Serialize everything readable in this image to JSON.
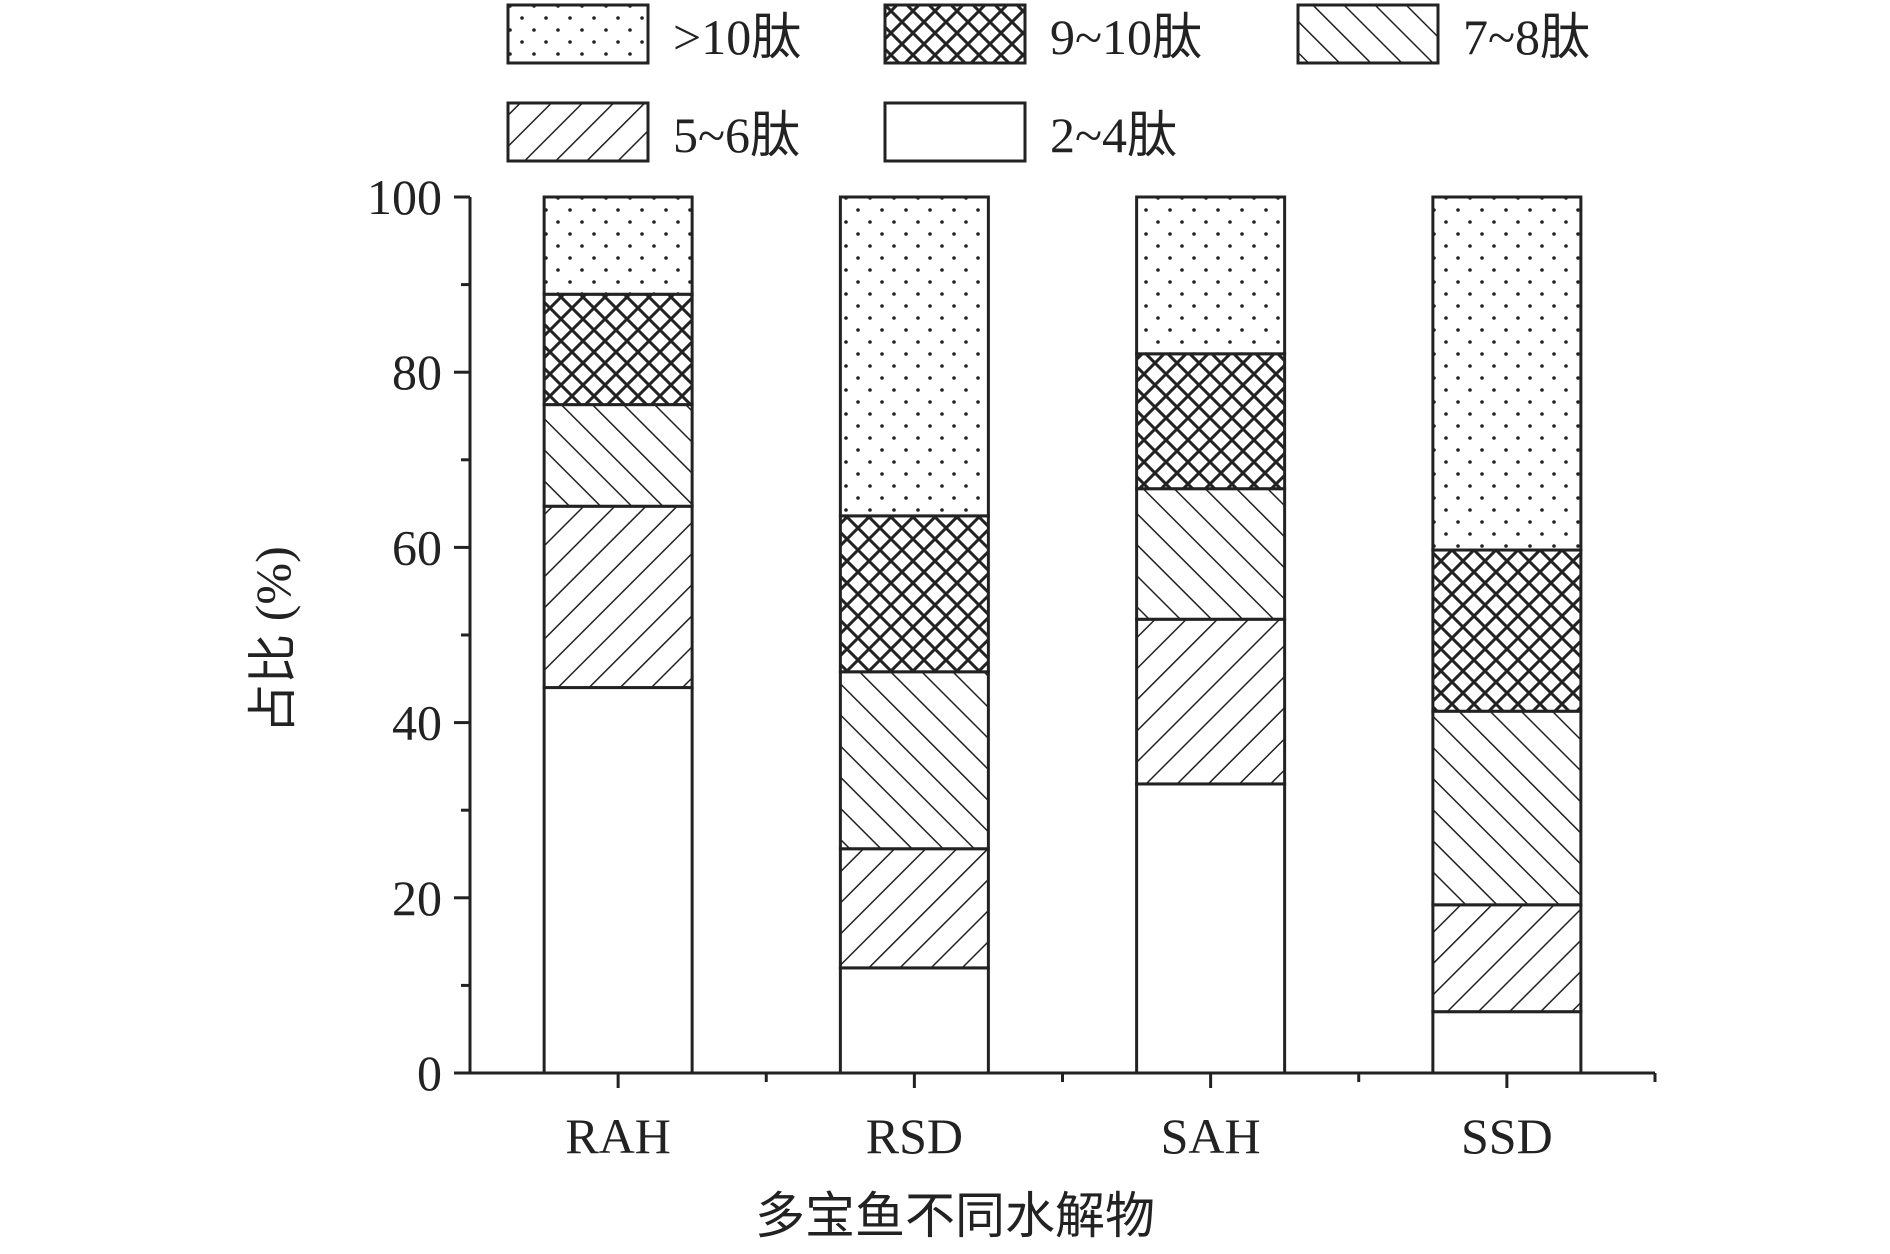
{
  "chart_data": {
    "type": "bar",
    "stacked": true,
    "title": "",
    "xlabel": "多宝鱼不同水解物",
    "ylabel": "占比 (%)",
    "ylim": [
      0,
      100
    ],
    "yticks": [
      "0",
      "20",
      "40",
      "60",
      "80",
      "100"
    ],
    "categories": [
      "RAH",
      "RSD",
      "SAH",
      "SSD"
    ],
    "legend_position": "top",
    "series": [
      {
        "name": "2~4肽",
        "pattern": "blank",
        "values": [
          44.0,
          12.0,
          33.0,
          7.0
        ]
      },
      {
        "name": "5~6肽",
        "pattern": "diagonal-up",
        "values": [
          20.7,
          13.6,
          18.8,
          12.2
        ]
      },
      {
        "name": "7~8肽",
        "pattern": "diagonal-down",
        "values": [
          11.6,
          20.2,
          14.9,
          22.1
        ]
      },
      {
        "name": "9~10肽",
        "pattern": "crosshatch",
        "values": [
          12.6,
          17.8,
          15.4,
          18.4
        ]
      },
      {
        "name": ">10肽",
        "pattern": "dots",
        "values": [
          11.1,
          36.4,
          17.9,
          40.3
        ]
      }
    ],
    "legend_order": [
      ">10肽",
      "9~10肽",
      "7~8肽",
      "5~6肽",
      "2~4肽"
    ],
    "colors": {
      "stroke": "#222222",
      "fill": "#ffffff"
    }
  }
}
